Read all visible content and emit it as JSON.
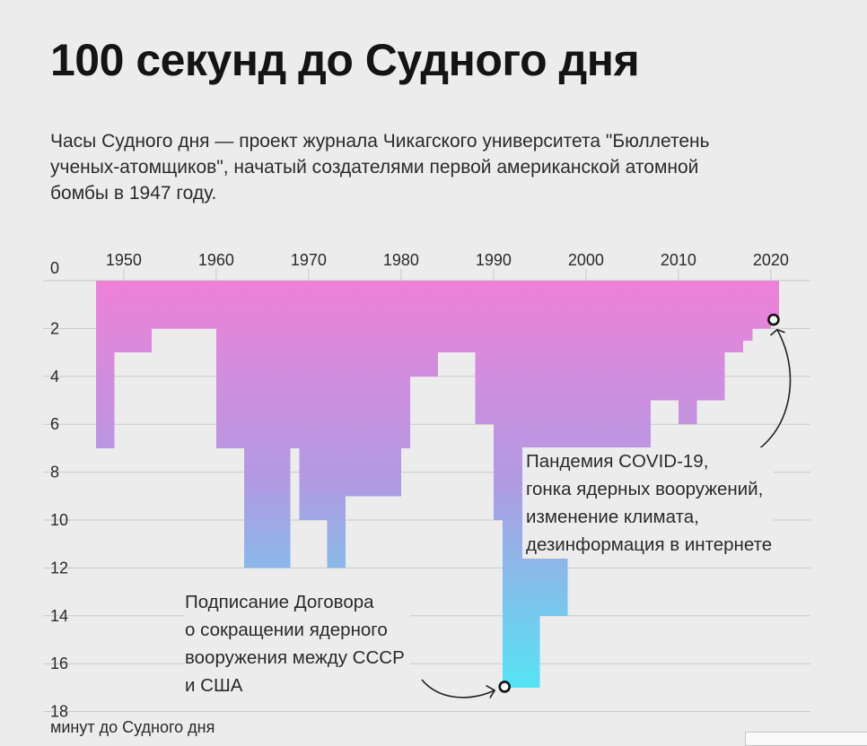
{
  "title": "100 секунд до Судного дня",
  "subtitle_lines": [
    "Часы Судного дня — проект журнала Чикагского университета \"Бюллетень",
    "ученых-атомщиков\", начатый создателями первой американской атомной",
    "бомбы в 1947 году."
  ],
  "annotations": {
    "covid": [
      "Пандемия COVID-19,",
      "гонка ядерных вооружений,",
      "изменение климата,",
      "дезинформация в интернете"
    ],
    "treaty": [
      "Подписание Договора",
      "о сокращении ядерного",
      "вооружения между СССР",
      "и США"
    ]
  },
  "ylabel": "минут до Судного дня",
  "colors": {
    "bar_top": "#ef80d8",
    "bar_mid": "#b09be3",
    "bar_bottom": "#55e3f4",
    "grid": "#c9c9c9",
    "marker_stroke": "#111111"
  },
  "chart_data": {
    "type": "area",
    "title": "100 секунд до Судного дня",
    "ylabel": "минут до Судного дня",
    "x_ticks": [
      1950,
      1960,
      1970,
      1980,
      1990,
      2000,
      2010,
      2020
    ],
    "y_ticks": [
      0,
      2,
      4,
      6,
      8,
      10,
      12,
      14,
      16,
      18
    ],
    "xlim": [
      1947,
      2020
    ],
    "ylim": [
      0,
      18
    ],
    "y_inverted": true,
    "grid": "horizontal",
    "series": [
      {
        "years": [
          1947,
          1949,
          1953,
          1960,
          1963,
          1968,
          1969,
          1972,
          1974,
          1980,
          1981,
          1984,
          1988,
          1990,
          1991,
          1995,
          1998,
          2002,
          2007,
          2010,
          2012,
          2015,
          2017,
          2018,
          2020
        ],
        "minutes": [
          7,
          3,
          2,
          7,
          12,
          7,
          10,
          12,
          9,
          7,
          4,
          3,
          6,
          10,
          17,
          14,
          9,
          7,
          5,
          6,
          5,
          3,
          2.5,
          2,
          1.67
        ]
      }
    ],
    "highlight_points": [
      {
        "year": 1991,
        "minutes": 17
      },
      {
        "year": 2020,
        "minutes": 1.67
      }
    ]
  }
}
